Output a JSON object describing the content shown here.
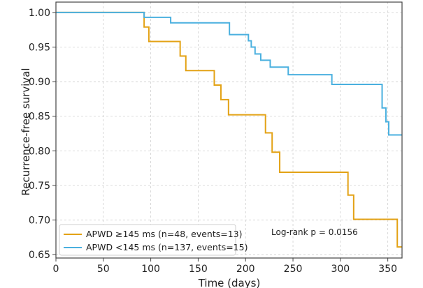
{
  "chart_data": {
    "type": "line",
    "subtype": "kaplan-meier-step",
    "title": "",
    "xlabel": "Time (days)",
    "ylabel": "Recurrence-free survival",
    "xlim": [
      0,
      365
    ],
    "ylim": [
      0.645,
      1.015
    ],
    "x_ticks": [
      0,
      50,
      100,
      150,
      200,
      250,
      300,
      350
    ],
    "y_ticks": [
      0.65,
      0.7,
      0.75,
      0.8,
      0.85,
      0.9,
      0.95,
      1.0
    ],
    "x_tick_labels": [
      "0",
      "50",
      "100",
      "150",
      "200",
      "250",
      "300",
      "350"
    ],
    "y_tick_labels": [
      "0.65",
      "0.70",
      "0.75",
      "0.80",
      "0.85",
      "0.90",
      "0.95",
      "1.00"
    ],
    "grid": true,
    "legend_position": "bottom-left",
    "series": [
      {
        "name": "APWD ≥145 ms (n=48, events=13)",
        "color": "#e3a215",
        "points": [
          [
            0,
            1.0
          ],
          [
            93,
            1.0
          ],
          [
            93,
            0.979
          ],
          [
            98,
            0.979
          ],
          [
            98,
            0.958
          ],
          [
            131,
            0.958
          ],
          [
            131,
            0.937
          ],
          [
            137,
            0.937
          ],
          [
            137,
            0.916
          ],
          [
            167,
            0.916
          ],
          [
            167,
            0.895
          ],
          [
            174,
            0.895
          ],
          [
            174,
            0.874
          ],
          [
            182,
            0.874
          ],
          [
            182,
            0.852
          ],
          [
            221,
            0.852
          ],
          [
            221,
            0.826
          ],
          [
            228,
            0.826
          ],
          [
            228,
            0.798
          ],
          [
            236,
            0.798
          ],
          [
            236,
            0.769
          ],
          [
            308,
            0.769
          ],
          [
            308,
            0.736
          ],
          [
            314,
            0.736
          ],
          [
            314,
            0.701
          ],
          [
            360,
            0.701
          ],
          [
            360,
            0.661
          ],
          [
            365,
            0.661
          ]
        ]
      },
      {
        "name": "APWD <145 ms (n=137, events=15)",
        "color": "#4ab0df",
        "points": [
          [
            0,
            1.0
          ],
          [
            93,
            1.0
          ],
          [
            93,
            0.993
          ],
          [
            121,
            0.993
          ],
          [
            121,
            0.985
          ],
          [
            183,
            0.985
          ],
          [
            183,
            0.968
          ],
          [
            203,
            0.968
          ],
          [
            203,
            0.959
          ],
          [
            206,
            0.959
          ],
          [
            206,
            0.95
          ],
          [
            210,
            0.95
          ],
          [
            210,
            0.94
          ],
          [
            216,
            0.94
          ],
          [
            216,
            0.931
          ],
          [
            226,
            0.931
          ],
          [
            226,
            0.921
          ],
          [
            245,
            0.921
          ],
          [
            245,
            0.91
          ],
          [
            291,
            0.91
          ],
          [
            291,
            0.896
          ],
          [
            344,
            0.896
          ],
          [
            344,
            0.862
          ],
          [
            348,
            0.862
          ],
          [
            348,
            0.842
          ],
          [
            351,
            0.842
          ],
          [
            351,
            0.823
          ],
          [
            365,
            0.823
          ]
        ]
      }
    ],
    "annotation": "Log-rank p = 0.0156"
  }
}
